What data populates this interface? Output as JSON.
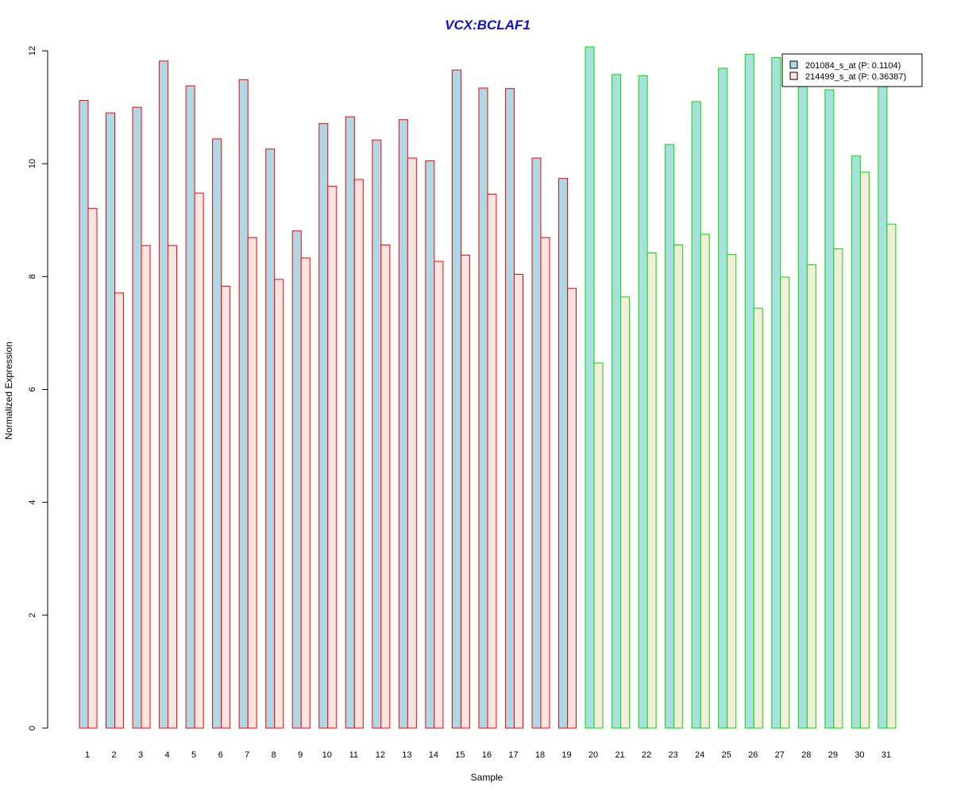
{
  "chart_data": {
    "type": "bar",
    "title": "VCX:BCLAF1",
    "xlabel": "Sample",
    "ylabel": "Normalized Expression",
    "ylim": [
      0,
      12
    ],
    "yticks": [
      "0",
      "2",
      "4",
      "6",
      "8",
      "10",
      "12"
    ],
    "grid": false,
    "legend_position": "top-right",
    "categories": [
      "1",
      "2",
      "3",
      "4",
      "5",
      "6",
      "7",
      "8",
      "9",
      "10",
      "11",
      "12",
      "13",
      "14",
      "15",
      "16",
      "17",
      "18",
      "19",
      "20",
      "21",
      "22",
      "23",
      "24",
      "25",
      "26",
      "27",
      "28",
      "29",
      "30",
      "31"
    ],
    "series": [
      {
        "name": "201084_s_at (P: 0.1104)",
        "values": [
          11.12,
          10.9,
          11.0,
          11.82,
          11.38,
          10.44,
          11.49,
          10.26,
          8.81,
          10.71,
          10.83,
          10.42,
          10.78,
          10.05,
          11.66,
          11.34,
          11.33,
          10.1,
          9.74,
          12.07,
          11.58,
          11.56,
          10.34,
          11.1,
          11.69,
          11.94,
          11.88,
          11.45,
          11.31,
          10.14,
          11.45
        ]
      },
      {
        "name": "214499_s_at (P: 0.36387)",
        "values": [
          9.21,
          7.71,
          8.55,
          8.55,
          9.48,
          7.83,
          8.69,
          7.95,
          8.33,
          9.6,
          9.72,
          8.56,
          10.1,
          8.27,
          8.38,
          9.46,
          8.04,
          8.69,
          7.79,
          6.47,
          7.64,
          8.42,
          8.56,
          8.75,
          8.39,
          7.44,
          7.99,
          8.21,
          8.49,
          9.85,
          8.93
        ]
      }
    ],
    "group_split_after": 19,
    "colors": {
      "title": "#1010cc",
      "series1_fill_group1": "#add8e6",
      "series2_fill_group1": "#ffe4e1",
      "series1_fill_group2": "#a8e0df",
      "series2_fill_group2": "#f5ecdc",
      "border_group1": "#ff0000",
      "border_group2": "#00dd00",
      "legend_fill_1": "#add8e6",
      "legend_fill_2": "#ffe4e1"
    }
  }
}
